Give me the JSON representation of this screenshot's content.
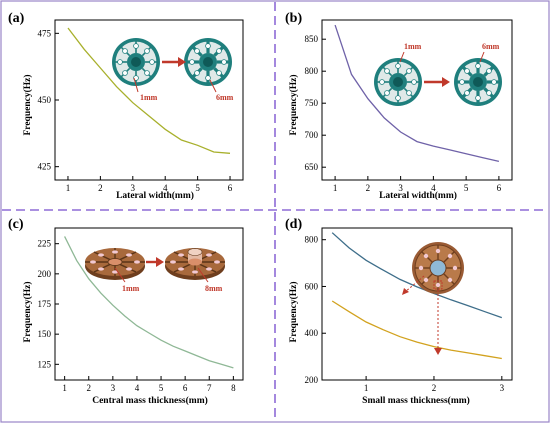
{
  "panels": [
    {
      "letter": "(a)",
      "xlabel": "Lateral width(mm)",
      "ylabel": "Frequency(Hz)",
      "anno": [
        "1mm",
        "6mm"
      ]
    },
    {
      "letter": "(b)",
      "xlabel": "Lateral width(mm)",
      "ylabel": "Frequency(Hz)",
      "anno": [
        "1mm",
        "6mm"
      ]
    },
    {
      "letter": "(c)",
      "xlabel": "Central mass thickness(mm)",
      "ylabel": "Frequency(Hz)",
      "anno": [
        "1mm",
        "8mm"
      ]
    },
    {
      "letter": "(d)",
      "xlabel": "Small mass thickness(mm)",
      "ylabel": "Frequency(Hz)",
      "anno": []
    }
  ],
  "colors": {
    "divider": "#8e6bd6",
    "frame": "#9a86c8",
    "annotation": "#c0392b",
    "disk_teal": "#1f7f7d",
    "disk_brown": "#9a5b34"
  },
  "chart_data": [
    {
      "type": "line",
      "xlabel": "Lateral width(mm)",
      "ylabel": "Frequency(Hz)",
      "xlim": [
        0.6,
        6.4
      ],
      "ylim": [
        420,
        480
      ],
      "xticks": [
        1,
        2,
        3,
        4,
        5,
        6
      ],
      "yticks": [
        425,
        450,
        475
      ],
      "series": [
        {
          "color": "#a8b02c",
          "x": [
            1,
            1.5,
            2,
            2.5,
            3,
            3.5,
            4,
            4.5,
            5,
            5.5,
            6
          ],
          "y": [
            477,
            469,
            462,
            455,
            449,
            444,
            439,
            435,
            433,
            430.5,
            430
          ]
        }
      ]
    },
    {
      "type": "line",
      "xlabel": "Lateral width(mm)",
      "ylabel": "Frequency(Hz)",
      "xlim": [
        0.6,
        6.4
      ],
      "ylim": [
        630,
        880
      ],
      "xticks": [
        1,
        2,
        3,
        4,
        5,
        6
      ],
      "yticks": [
        650,
        700,
        750,
        800,
        850
      ],
      "series": [
        {
          "color": "#6f62a8",
          "x": [
            1,
            1.5,
            2,
            2.5,
            3,
            3.5,
            4,
            4.5,
            5,
            5.5,
            6
          ],
          "y": [
            872,
            795,
            757,
            727,
            705,
            690,
            683,
            677,
            671,
            665,
            659
          ]
        }
      ]
    },
    {
      "type": "line",
      "xlabel": "Central mass thickness(mm)",
      "ylabel": "Frequency(Hz)",
      "xlim": [
        0.6,
        8.4
      ],
      "ylim": [
        112,
        238
      ],
      "xticks": [
        1,
        2,
        3,
        4,
        5,
        6,
        7,
        8
      ],
      "yticks": [
        125,
        150,
        175,
        200,
        225
      ],
      "series": [
        {
          "color": "#8fb896",
          "x": [
            1,
            1.5,
            2,
            2.5,
            3,
            3.5,
            4,
            4.5,
            5,
            5.5,
            6,
            6.5,
            7,
            7.5,
            8
          ],
          "y": [
            231,
            211,
            196,
            184,
            174,
            165,
            157,
            151,
            145,
            140,
            136,
            132,
            128,
            125,
            122
          ]
        }
      ]
    },
    {
      "type": "line",
      "xlabel": "Small mass thickness(mm)",
      "ylabel": "Frequency(Hz)",
      "xlim": [
        0.35,
        3.15
      ],
      "ylim": [
        200,
        850
      ],
      "xticks": [
        1,
        2,
        3
      ],
      "yticks": [
        200,
        400,
        600,
        800
      ],
      "series": [
        {
          "color": "#3e6e8a",
          "x": [
            0.5,
            0.75,
            1,
            1.25,
            1.5,
            1.75,
            2,
            2.25,
            2.5,
            2.75,
            3
          ],
          "y": [
            830,
            765,
            712,
            670,
            630,
            598,
            570,
            543,
            518,
            492,
            467
          ]
        },
        {
          "color": "#d2a21f",
          "x": [
            0.5,
            0.75,
            1,
            1.25,
            1.5,
            1.75,
            2,
            2.25,
            2.5,
            2.75,
            3
          ],
          "y": [
            538,
            492,
            448,
            415,
            385,
            362,
            343,
            328,
            316,
            304,
            292
          ]
        }
      ]
    }
  ]
}
